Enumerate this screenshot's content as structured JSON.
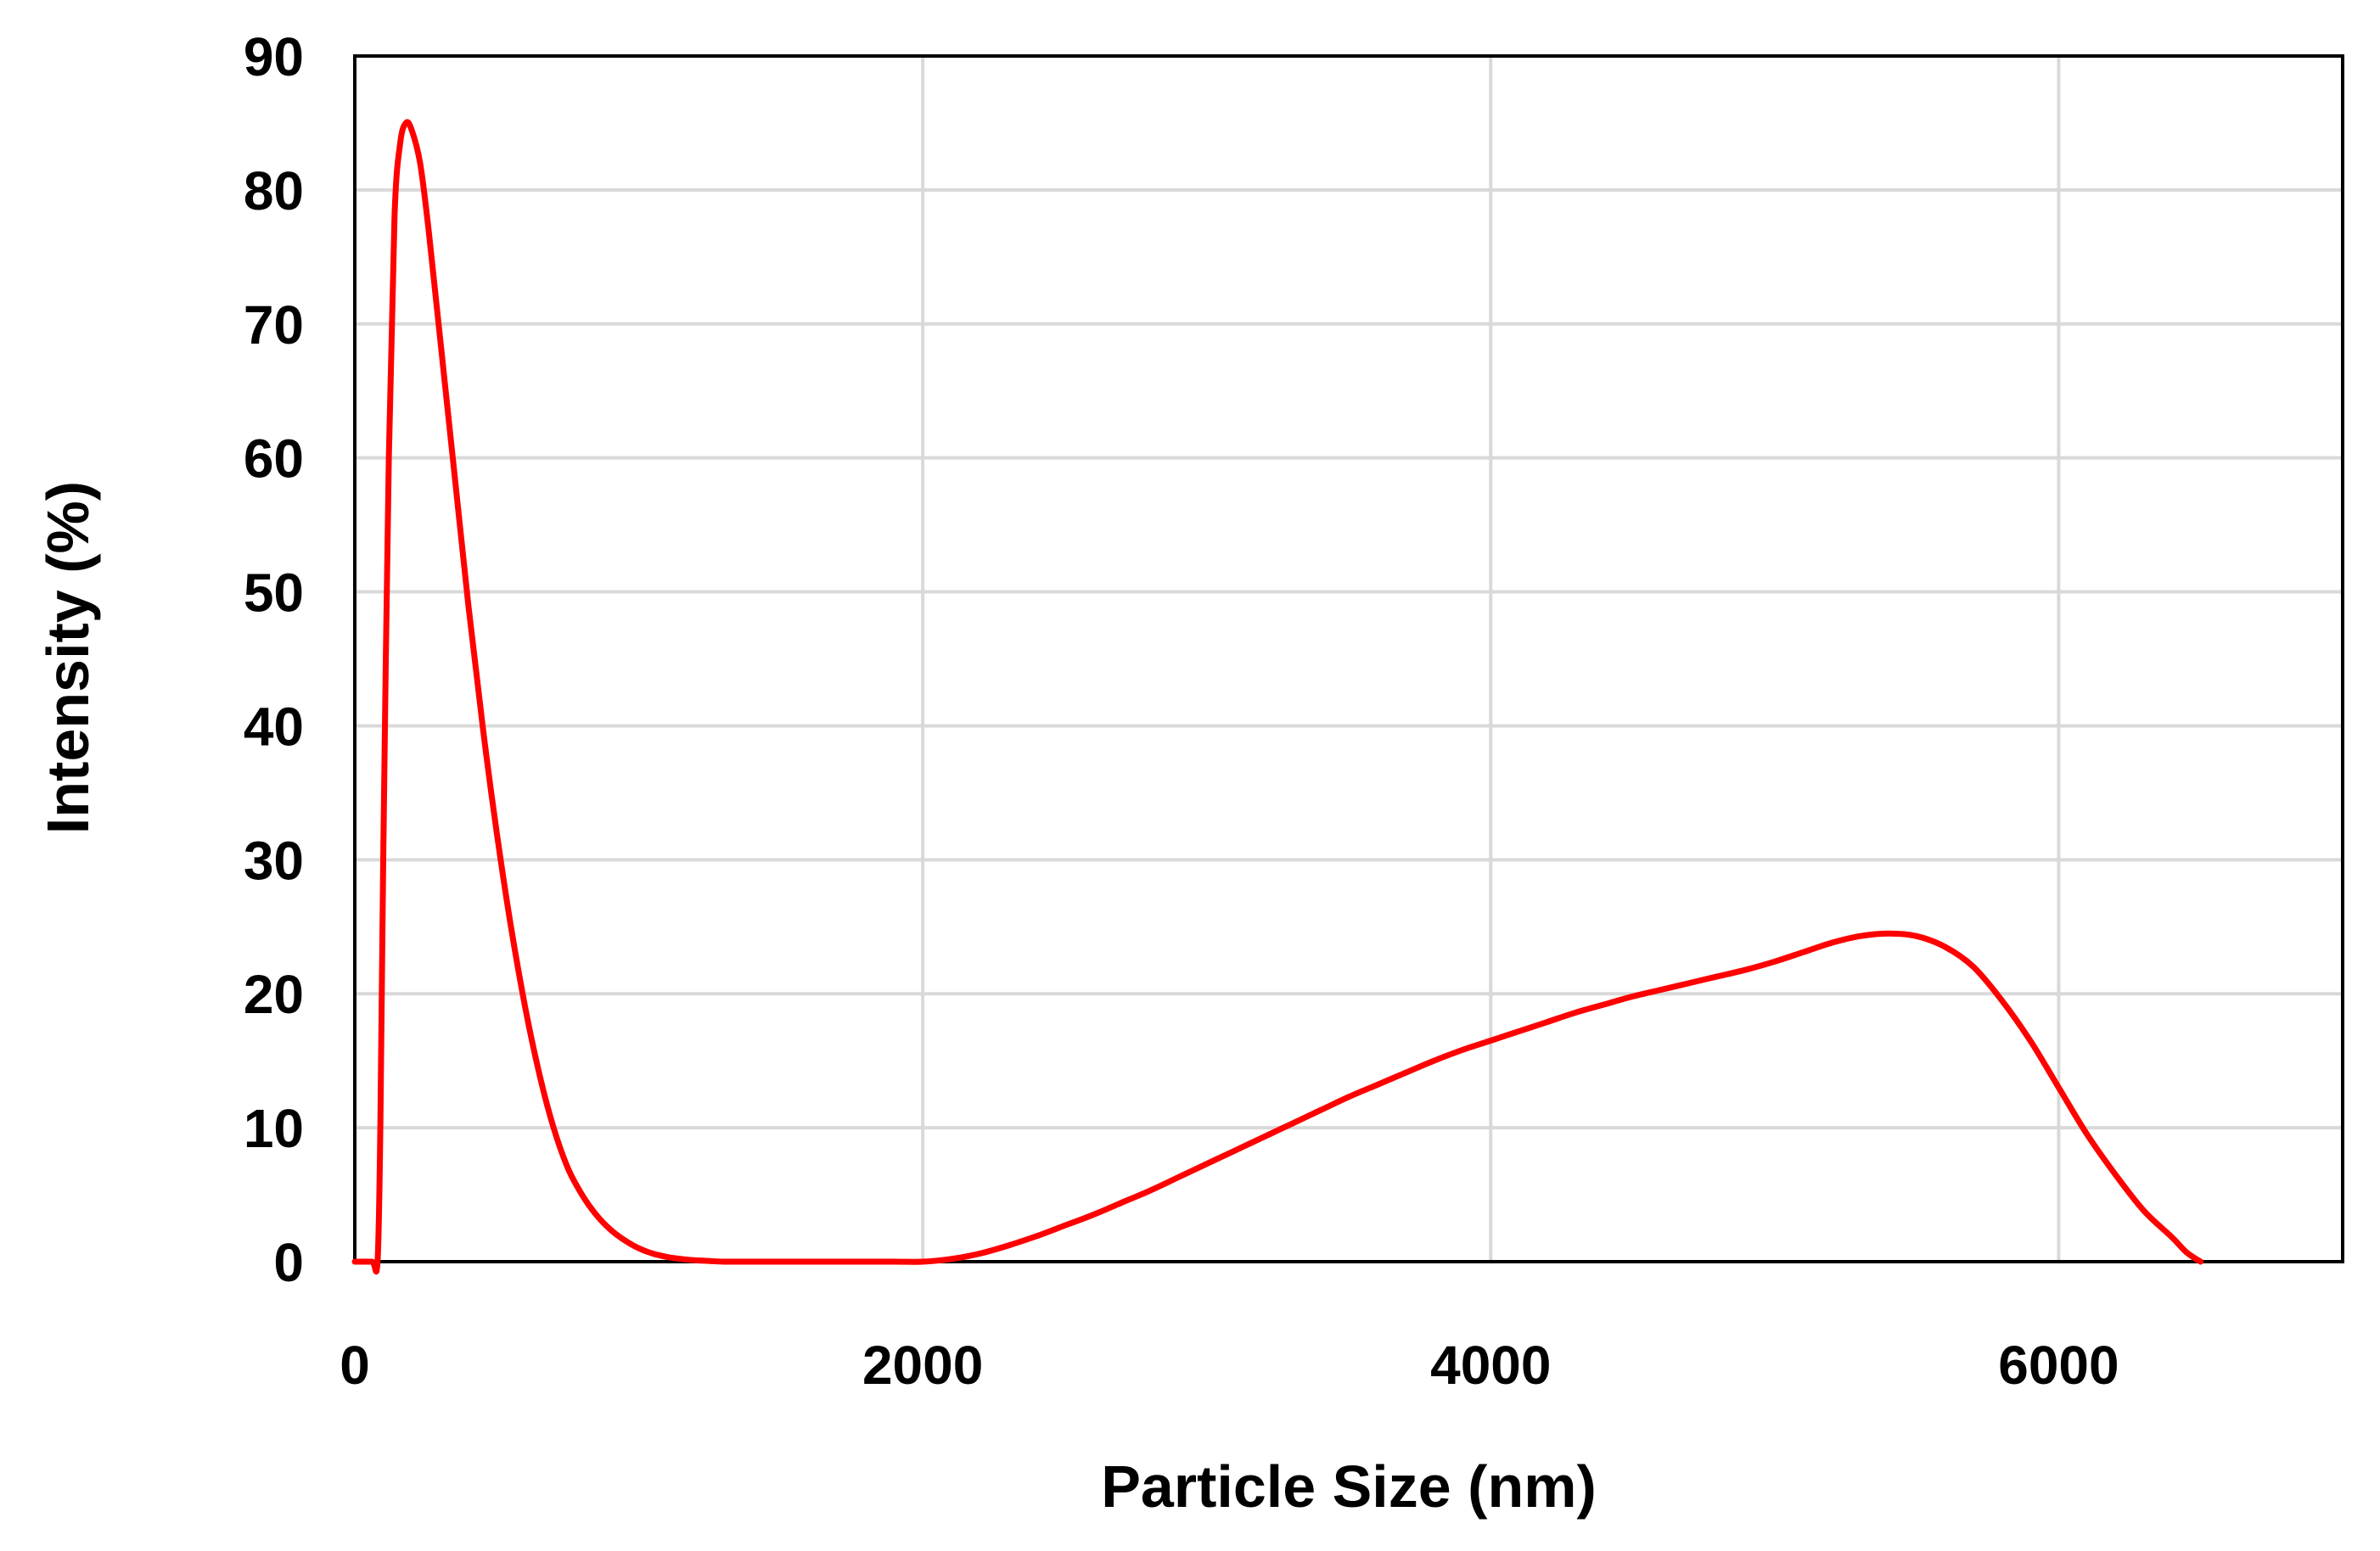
{
  "chart_data": {
    "type": "line",
    "title": "",
    "xlabel": "Particle Size (nm)",
    "ylabel": "Intensity (%)",
    "xlim": [
      0,
      7000
    ],
    "ylim": [
      0,
      90
    ],
    "xticks": [
      0,
      2000,
      4000,
      6000
    ],
    "yticks": [
      0,
      10,
      20,
      30,
      40,
      50,
      60,
      70,
      80,
      90
    ],
    "grid": true,
    "legend": "none",
    "series_color": "#ff0000",
    "series": [
      {
        "x": [
          0,
          60,
          80,
          90,
          100,
          120,
          140,
          160,
          180,
          200,
          230,
          260,
          300,
          350,
          400,
          450,
          500,
          550,
          600,
          650,
          700,
          750,
          800,
          850,
          900,
          950,
          1000,
          1050,
          1100,
          1150,
          1200,
          1250,
          1300,
          1350,
          1400,
          1500,
          1700,
          1900,
          2000,
          2100,
          2200,
          2300,
          2400,
          2500,
          2600,
          2700,
          2800,
          2900,
          3000,
          3100,
          3200,
          3300,
          3400,
          3500,
          3600,
          3700,
          3800,
          3900,
          4000,
          4100,
          4200,
          4300,
          4400,
          4500,
          4600,
          4700,
          4800,
          4900,
          5000,
          5100,
          5200,
          5300,
          5400,
          5500,
          5600,
          5700,
          5800,
          5900,
          6000,
          6100,
          6200,
          6300,
          6400,
          6450,
          6500
        ],
        "y": [
          0,
          0,
          0,
          10,
          30,
          60,
          78,
          83.5,
          85,
          84.5,
          82,
          77,
          69,
          59,
          49,
          40,
          32,
          25,
          19,
          14,
          10,
          7,
          5,
          3.5,
          2.4,
          1.6,
          1,
          0.6,
          0.35,
          0.2,
          0.1,
          0.05,
          0,
          0,
          0,
          0,
          0,
          0,
          0,
          0.2,
          0.6,
          1.2,
          1.9,
          2.7,
          3.5,
          4.4,
          5.3,
          6.3,
          7.3,
          8.3,
          9.3,
          10.3,
          11.3,
          12.3,
          13.2,
          14.1,
          15,
          15.8,
          16.5,
          17.2,
          17.9,
          18.6,
          19.2,
          19.8,
          20.3,
          20.8,
          21.3,
          21.8,
          22.4,
          23.1,
          23.8,
          24.3,
          24.5,
          24.3,
          23.5,
          22,
          19.5,
          16.5,
          13,
          9.5,
          6.5,
          3.8,
          1.8,
          0.7,
          0
        ]
      }
    ]
  }
}
